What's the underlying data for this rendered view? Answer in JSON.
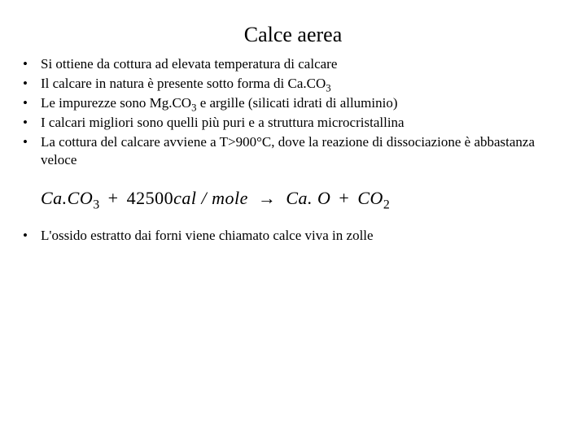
{
  "title": "Calce aerea",
  "bullets_top": [
    "Si ottiene da cottura ad elevata temperatura di calcare",
    "Il calcare in natura è presente sotto forma di Ca.CO",
    "Le impurezze sono Mg.CO",
    "I calcari migliori sono quelli più puri e a struttura microcristallina",
    "La cottura del calcare avviene a T>900°C, dove la reazione di dissociazione è abbastanza veloce"
  ],
  "bullet_2_suffix_sub": "3",
  "bullet_3_middle": " e argille (silicati idrati di alluminio)",
  "bullet_3_sub": "3",
  "equation": {
    "lhs_1": "Ca.CO",
    "lhs_1_sub": "3",
    "plus": "+",
    "energy_num": "42500",
    "energy_unit": "cal / mole",
    "arrow": "→",
    "rhs_1": "Ca. O",
    "rhs_2": "CO",
    "rhs_2_sub": "2"
  },
  "bullet_bottom": "L'ossido estratto dai forni viene chiamato calce viva in zolle",
  "style": {
    "background_color": "#ffffff",
    "text_color": "#000000",
    "title_fontsize": 26,
    "body_fontsize": 17,
    "equation_fontsize": 22,
    "font_family": "Times New Roman"
  }
}
